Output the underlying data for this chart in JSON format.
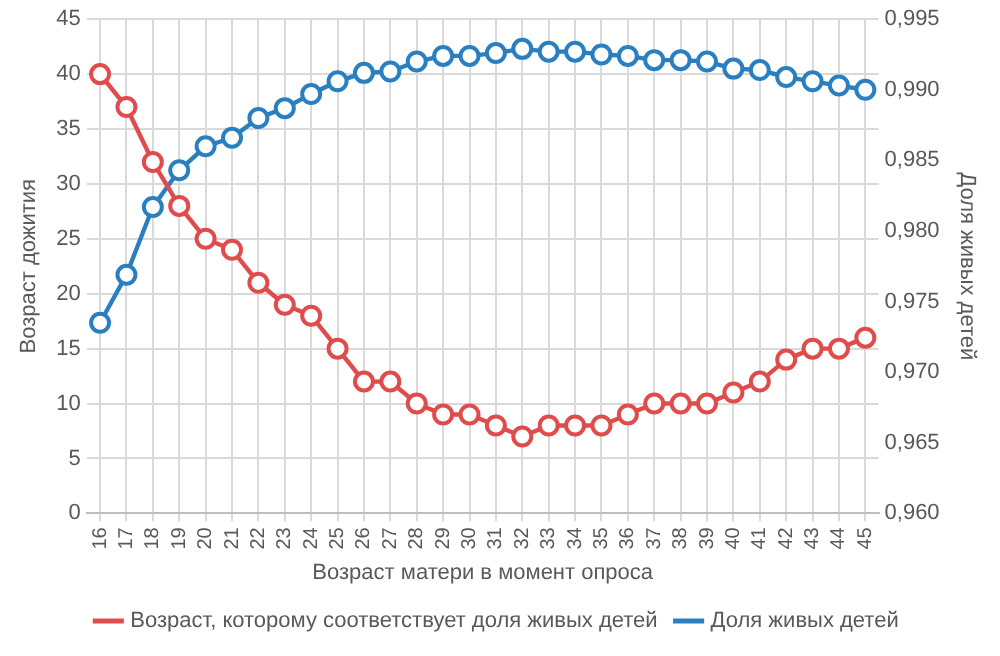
{
  "chart_data": {
    "type": "line",
    "xlabel": "Возраст матери в момент опроса",
    "ylabel": "Возраст дожития",
    "y2label": "Доля живых детей",
    "categories": [
      "16",
      "17",
      "18",
      "19",
      "20",
      "21",
      "22",
      "23",
      "24",
      "25",
      "26",
      "27",
      "28",
      "29",
      "30",
      "31",
      "32",
      "33",
      "34",
      "35",
      "36",
      "37",
      "38",
      "39",
      "40",
      "41",
      "42",
      "43",
      "44",
      "45"
    ],
    "series": [
      {
        "name": "Возраст, которому соответствует доля живых детей",
        "color": "#e04b4b",
        "values": [
          40,
          37,
          32,
          28,
          25,
          24,
          21,
          19,
          18,
          15,
          12,
          12,
          10,
          9,
          9,
          8,
          7,
          8,
          8,
          8,
          9,
          10,
          10,
          10,
          11,
          12,
          14,
          15,
          15,
          16
        ]
      },
      {
        "name": "Доля живых детей",
        "color": "#2a7fc1",
        "axis": "y2",
        "values": [
          0.9735,
          0.9769,
          0.9817,
          0.9843,
          0.986,
          0.9866,
          0.988,
          0.9887,
          0.9897,
          0.9906,
          0.9912,
          0.9913,
          0.992,
          0.9924,
          0.9924,
          0.9926,
          0.9929,
          0.9927,
          0.9927,
          0.9925,
          0.9924,
          0.9921,
          0.9921,
          0.992,
          0.9915,
          0.9914,
          0.9909,
          0.9906,
          0.9903,
          0.99
        ]
      }
    ],
    "ylim": [
      0,
      45
    ],
    "yticks": [
      0,
      5,
      10,
      15,
      20,
      25,
      30,
      35,
      40,
      45
    ],
    "y2lim": [
      0.96,
      0.995
    ],
    "y2ticks": [
      {
        "value": 0.96,
        "label": "0,960"
      },
      {
        "value": 0.965,
        "label": "0,965"
      },
      {
        "value": 0.97,
        "label": "0,970"
      },
      {
        "value": 0.975,
        "label": "0,975"
      },
      {
        "value": 0.98,
        "label": "0,980"
      },
      {
        "value": 0.985,
        "label": "0,985"
      },
      {
        "value": 0.99,
        "label": "0,990"
      },
      {
        "value": 0.995,
        "label": "0,995"
      }
    ],
    "grid": true,
    "legend": "bottom",
    "marker": "circle",
    "line_style": "solid"
  }
}
